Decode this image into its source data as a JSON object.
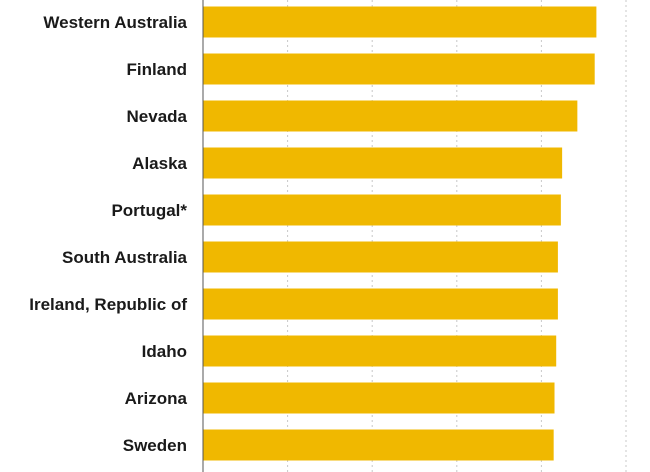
{
  "chart_data": {
    "type": "bar",
    "orientation": "horizontal",
    "categories": [
      "Western Australia",
      "Finland",
      "Nevada",
      "Alaska",
      "Portugal*",
      "South Australia",
      "Ireland, Republic of",
      "Idaho",
      "Arizona",
      "Sweden"
    ],
    "values": [
      93.0,
      92.6,
      88.5,
      84.9,
      84.6,
      83.9,
      83.9,
      83.5,
      83.1,
      82.9
    ],
    "xlim": [
      0,
      100
    ],
    "grid": true,
    "bar_color": "#F0B800",
    "title": "",
    "xlabel": "",
    "ylabel": ""
  }
}
